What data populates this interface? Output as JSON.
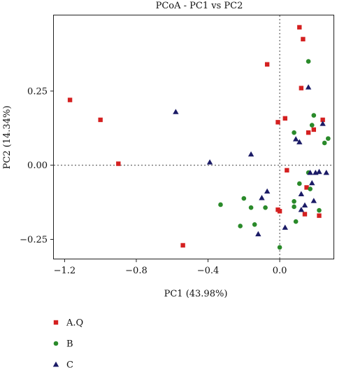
{
  "chart_data": {
    "type": "scatter",
    "title": "PCoA - PC1 vs PC2",
    "xlabel": "PC1 (43.98%)",
    "ylabel": "PC2 (14.34%)",
    "xlim": [
      -1.26,
      0.3
    ],
    "ylim": [
      -0.315,
      0.505
    ],
    "xticks": [
      -1.2,
      -0.8,
      -0.4,
      0.0
    ],
    "xtick_labels": [
      "−1.2",
      "−0.8",
      "−0.4",
      "0.0"
    ],
    "yticks": [
      -0.25,
      0.0,
      0.25
    ],
    "ytick_labels": [
      "−0.25",
      "0.00",
      "0.25"
    ],
    "reference_lines": {
      "x": 0,
      "y": 0,
      "style": "dotted"
    },
    "grid": false,
    "legend_position": "bottom-left",
    "series": [
      {
        "name": "A.Q",
        "marker": "square",
        "color": "#d42020",
        "points": [
          {
            "x": 0.11,
            "y": 0.465
          },
          {
            "x": 0.13,
            "y": 0.425
          },
          {
            "x": -0.07,
            "y": 0.34
          },
          {
            "x": 0.12,
            "y": 0.26
          },
          {
            "x": -1.17,
            "y": 0.22
          },
          {
            "x": -1.0,
            "y": 0.153
          },
          {
            "x": 0.03,
            "y": 0.158
          },
          {
            "x": 0.24,
            "y": 0.153
          },
          {
            "x": -0.01,
            "y": 0.145
          },
          {
            "x": 0.19,
            "y": 0.12
          },
          {
            "x": 0.16,
            "y": 0.11
          },
          {
            "x": -0.9,
            "y": 0.005
          },
          {
            "x": 0.04,
            "y": -0.017
          },
          {
            "x": 0.15,
            "y": -0.075
          },
          {
            "x": -0.01,
            "y": -0.15
          },
          {
            "x": 0.0,
            "y": -0.155
          },
          {
            "x": 0.14,
            "y": -0.165
          },
          {
            "x": 0.22,
            "y": -0.17
          },
          {
            "x": -0.54,
            "y": -0.27
          }
        ]
      },
      {
        "name": "B",
        "marker": "circle",
        "color": "#2a8a2a",
        "points": [
          {
            "x": 0.16,
            "y": 0.35
          },
          {
            "x": 0.19,
            "y": 0.168
          },
          {
            "x": 0.18,
            "y": 0.135
          },
          {
            "x": 0.08,
            "y": 0.11
          },
          {
            "x": 0.27,
            "y": 0.09
          },
          {
            "x": 0.25,
            "y": 0.075
          },
          {
            "x": 0.16,
            "y": -0.025
          },
          {
            "x": 0.11,
            "y": -0.062
          },
          {
            "x": 0.17,
            "y": -0.08
          },
          {
            "x": -0.2,
            "y": -0.112
          },
          {
            "x": 0.08,
            "y": -0.122
          },
          {
            "x": -0.33,
            "y": -0.133
          },
          {
            "x": -0.16,
            "y": -0.143
          },
          {
            "x": -0.08,
            "y": -0.143
          },
          {
            "x": 0.08,
            "y": -0.14
          },
          {
            "x": 0.22,
            "y": -0.152
          },
          {
            "x": 0.09,
            "y": -0.19
          },
          {
            "x": -0.14,
            "y": -0.2
          },
          {
            "x": -0.22,
            "y": -0.205
          },
          {
            "x": 0.0,
            "y": -0.277
          }
        ]
      },
      {
        "name": "C",
        "marker": "triangle",
        "color": "#1b1b66",
        "points": [
          {
            "x": 0.16,
            "y": 0.263
          },
          {
            "x": -0.58,
            "y": 0.18
          },
          {
            "x": 0.24,
            "y": 0.14
          },
          {
            "x": 0.09,
            "y": 0.088
          },
          {
            "x": 0.11,
            "y": 0.078
          },
          {
            "x": -0.16,
            "y": 0.037
          },
          {
            "x": -0.39,
            "y": 0.01
          },
          {
            "x": 0.17,
            "y": -0.025
          },
          {
            "x": 0.2,
            "y": -0.025
          },
          {
            "x": 0.22,
            "y": -0.022
          },
          {
            "x": 0.26,
            "y": -0.025
          },
          {
            "x": 0.18,
            "y": -0.06
          },
          {
            "x": 0.12,
            "y": -0.097
          },
          {
            "x": -0.07,
            "y": -0.088
          },
          {
            "x": -0.1,
            "y": -0.11
          },
          {
            "x": 0.19,
            "y": -0.12
          },
          {
            "x": 0.14,
            "y": -0.135
          },
          {
            "x": 0.12,
            "y": -0.15
          },
          {
            "x": -0.12,
            "y": -0.232
          },
          {
            "x": 0.03,
            "y": -0.21
          }
        ]
      }
    ]
  }
}
